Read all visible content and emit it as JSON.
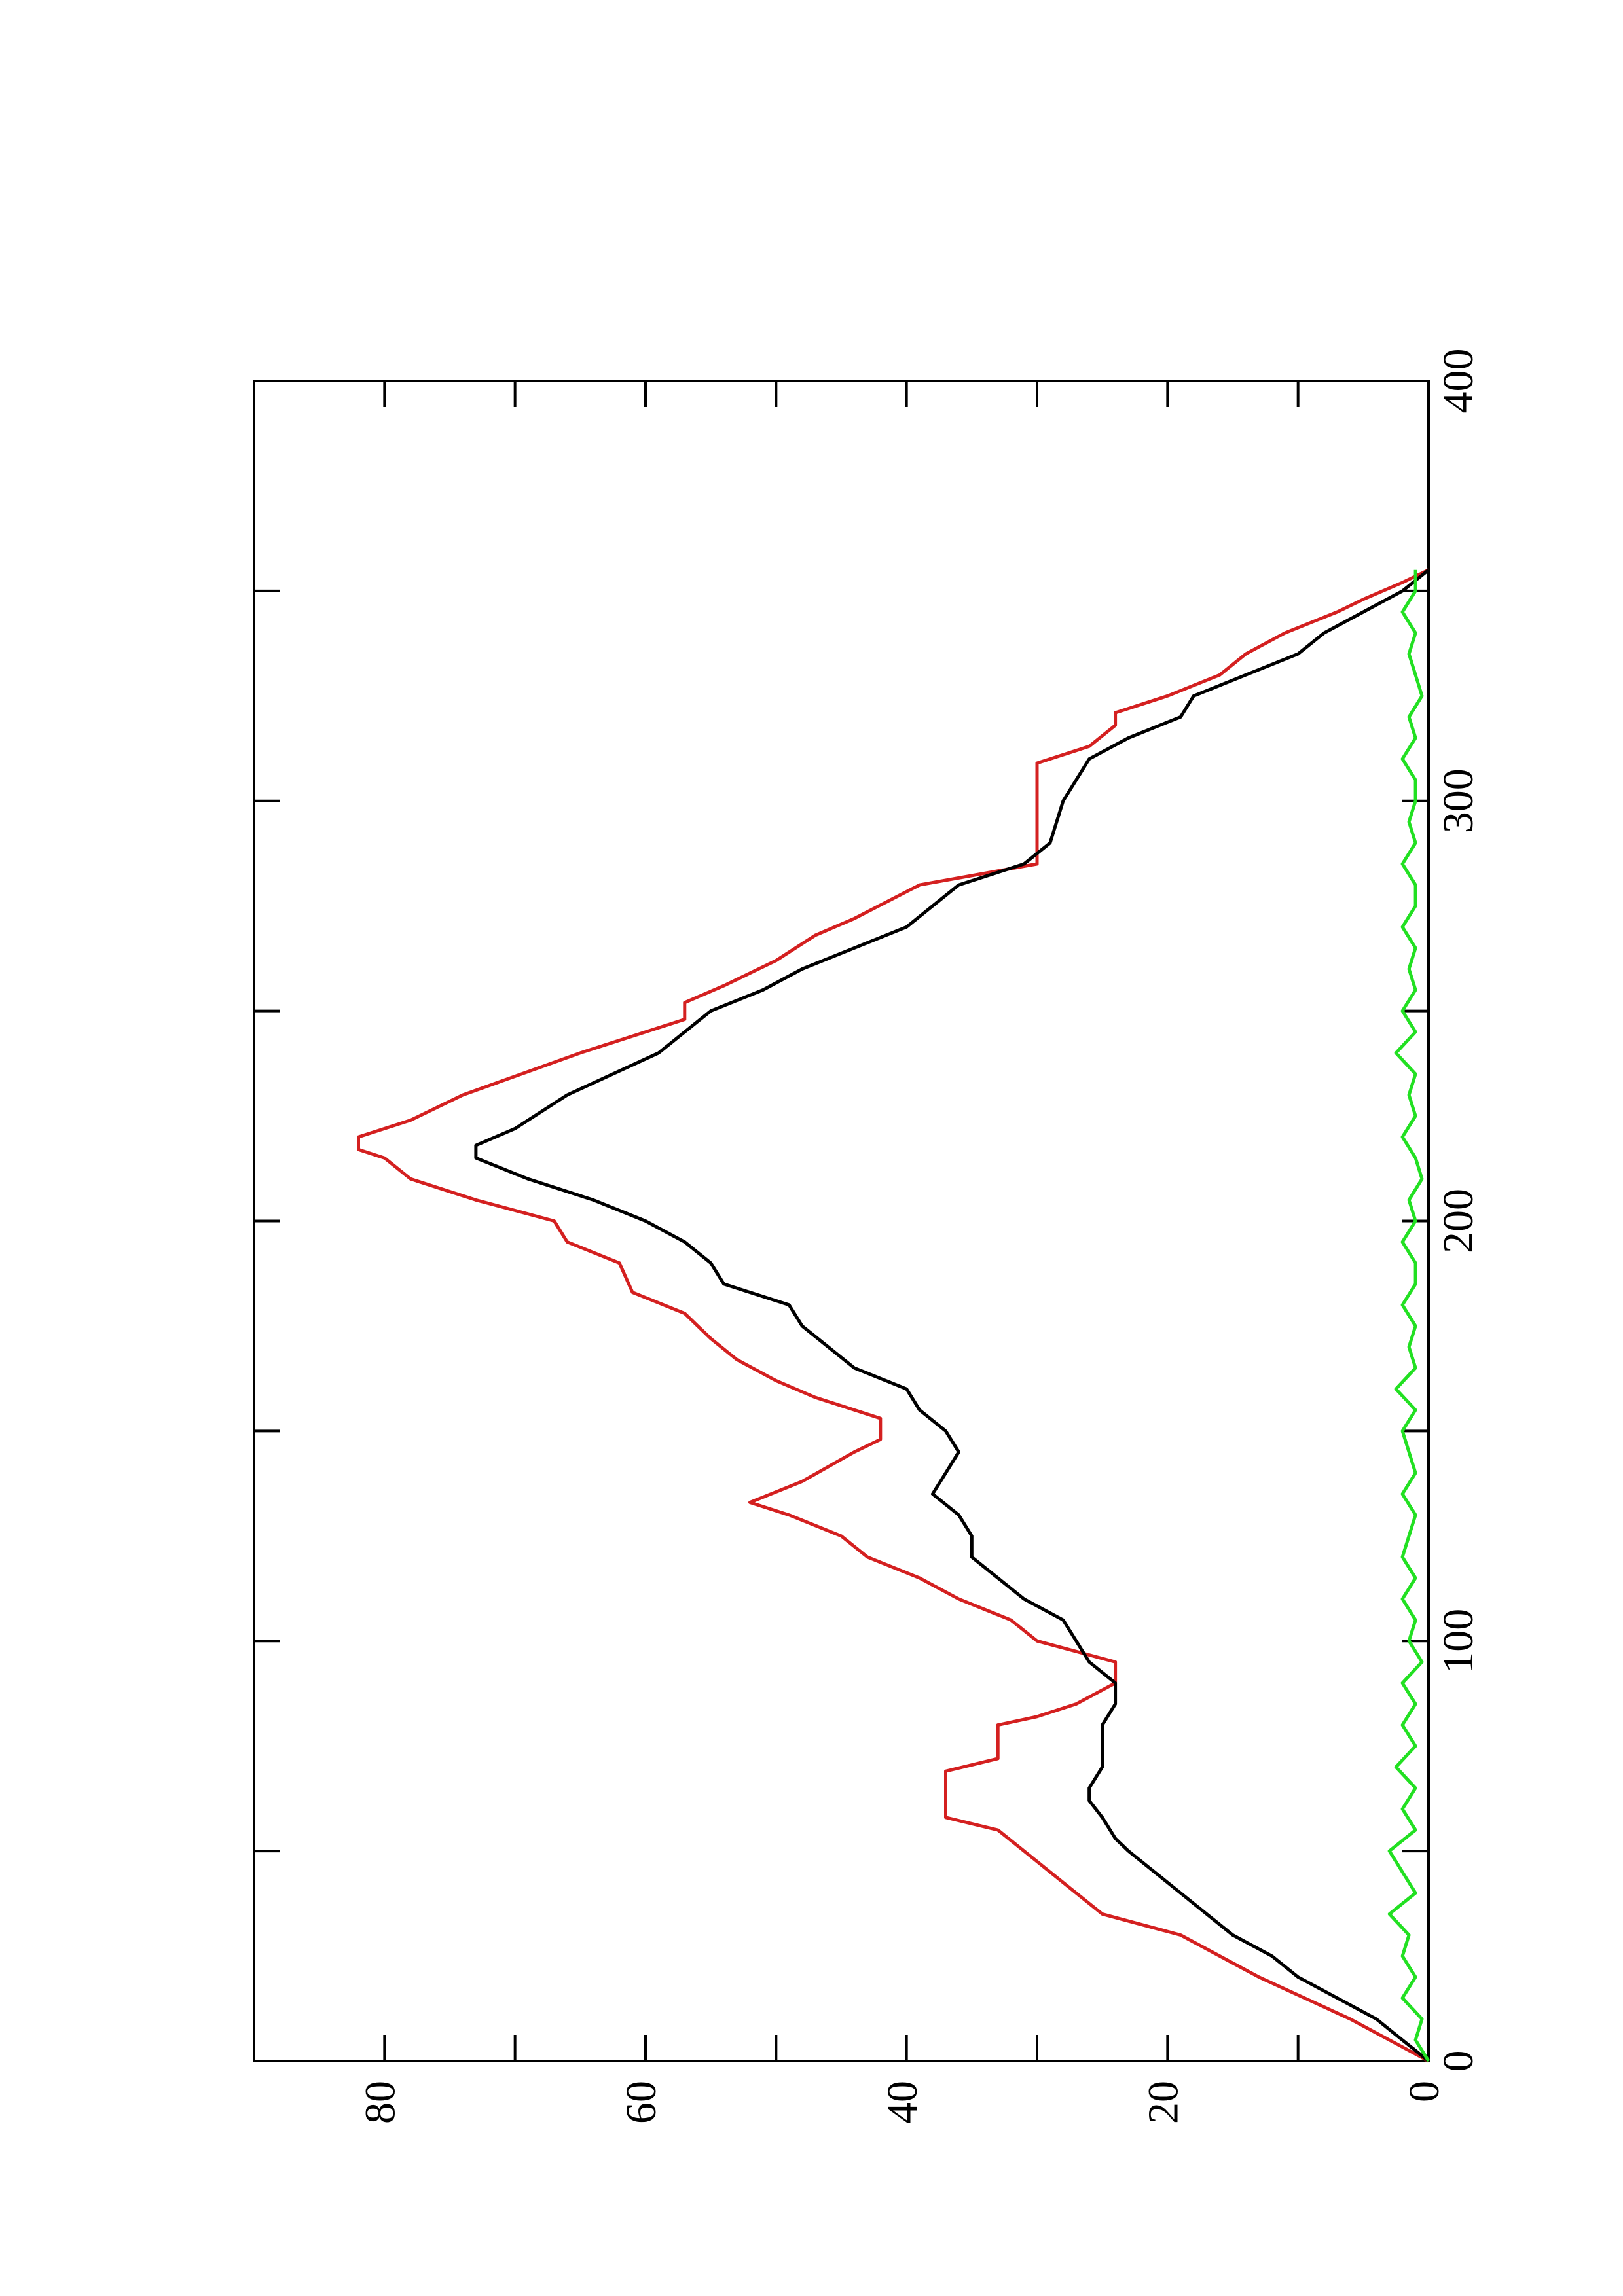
{
  "chart_data": {
    "type": "line",
    "xlim": [
      0,
      400
    ],
    "ylim": [
      0,
      90
    ],
    "xticks": [
      0,
      100,
      200,
      300,
      400
    ],
    "yticks": [
      0,
      20,
      40,
      60,
      80
    ],
    "series": [
      {
        "color": "#d42020",
        "x": [
          0,
          10,
          20,
          30,
          35,
          40,
          45,
          50,
          55,
          58,
          62,
          69,
          72,
          80,
          82,
          85,
          90,
          95,
          100,
          105,
          110,
          115,
          120,
          125,
          130,
          133,
          138,
          145,
          148,
          153,
          158,
          162,
          167,
          172,
          178,
          183,
          190,
          195,
          200,
          205,
          210,
          215,
          217,
          220,
          224,
          230,
          240,
          248,
          252,
          256,
          262,
          268,
          272,
          280,
          285,
          300,
          309,
          313,
          318,
          321,
          325,
          330,
          335,
          340,
          345,
          348,
          352,
          355
        ],
        "values": [
          0,
          6,
          13,
          19,
          25,
          27,
          29,
          31,
          33,
          37,
          37,
          37,
          33,
          33,
          30,
          27,
          24,
          24,
          30,
          32,
          36,
          39,
          43,
          45,
          49,
          52,
          48,
          44,
          42,
          42,
          47,
          50,
          53,
          55,
          57,
          61,
          62,
          66,
          67,
          73,
          78,
          80,
          82,
          82,
          78,
          74,
          65,
          57,
          57,
          54,
          50,
          47,
          44,
          39,
          30,
          30,
          30,
          26,
          24,
          24,
          20,
          16,
          14,
          11,
          7,
          5,
          2,
          0
        ]
      },
      {
        "color": "#000000",
        "x": [
          0,
          5,
          10,
          15,
          20,
          25,
          30,
          35,
          40,
          45,
          50,
          53,
          58,
          62,
          65,
          70,
          75,
          80,
          85,
          90,
          95,
          100,
          105,
          110,
          115,
          120,
          125,
          130,
          135,
          140,
          145,
          150,
          155,
          160,
          165,
          170,
          175,
          180,
          185,
          190,
          195,
          200,
          205,
          210,
          215,
          218,
          222,
          230,
          240,
          245,
          250,
          255,
          260,
          265,
          270,
          275,
          280,
          285,
          290,
          300,
          305,
          310,
          315,
          320,
          325,
          330,
          335,
          340,
          345,
          350,
          355
        ],
        "values": [
          0,
          2,
          4,
          7,
          10,
          12,
          15,
          17,
          19,
          21,
          23,
          24,
          25,
          26,
          26,
          25,
          25,
          25,
          24,
          24,
          26,
          27,
          28,
          31,
          33,
          35,
          35,
          36,
          38,
          37,
          36,
          37,
          39,
          40,
          44,
          46,
          48,
          49,
          54,
          55,
          57,
          60,
          64,
          69,
          73,
          73,
          70,
          66,
          59,
          57,
          55,
          51,
          48,
          44,
          40,
          38,
          36,
          31,
          29,
          28,
          27,
          26,
          23,
          19,
          18,
          14,
          10,
          8,
          5,
          2,
          0
        ]
      },
      {
        "color": "#22e022",
        "x": [
          0,
          5,
          10,
          15,
          20,
          25,
          30,
          35,
          40,
          45,
          50,
          55,
          60,
          65,
          70,
          75,
          80,
          85,
          90,
          95,
          100,
          105,
          110,
          115,
          120,
          125,
          130,
          135,
          140,
          145,
          150,
          155,
          160,
          165,
          170,
          175,
          180,
          185,
          190,
          195,
          200,
          205,
          210,
          215,
          220,
          225,
          230,
          235,
          240,
          245,
          250,
          255,
          260,
          265,
          270,
          275,
          280,
          285,
          290,
          295,
          300,
          305,
          310,
          315,
          320,
          325,
          330,
          335,
          340,
          345,
          350,
          355
        ],
        "values": [
          0,
          1,
          0.5,
          2,
          1,
          2,
          1.5,
          3,
          1,
          2,
          3,
          1,
          2,
          1,
          2.5,
          1,
          2,
          1,
          2,
          0.5,
          1.5,
          1,
          2,
          1,
          2,
          1.5,
          1,
          2,
          1,
          1.5,
          2,
          1,
          2.5,
          1,
          1.5,
          1,
          2,
          1,
          1,
          2,
          1,
          1.5,
          0.5,
          1,
          2,
          1,
          1.5,
          1,
          2.5,
          1,
          2,
          1,
          1.5,
          1,
          2,
          1,
          1,
          2,
          1,
          1.5,
          1,
          1,
          2,
          1,
          1.5,
          0.5,
          1,
          1.5,
          1,
          2,
          1,
          1
        ]
      }
    ]
  }
}
